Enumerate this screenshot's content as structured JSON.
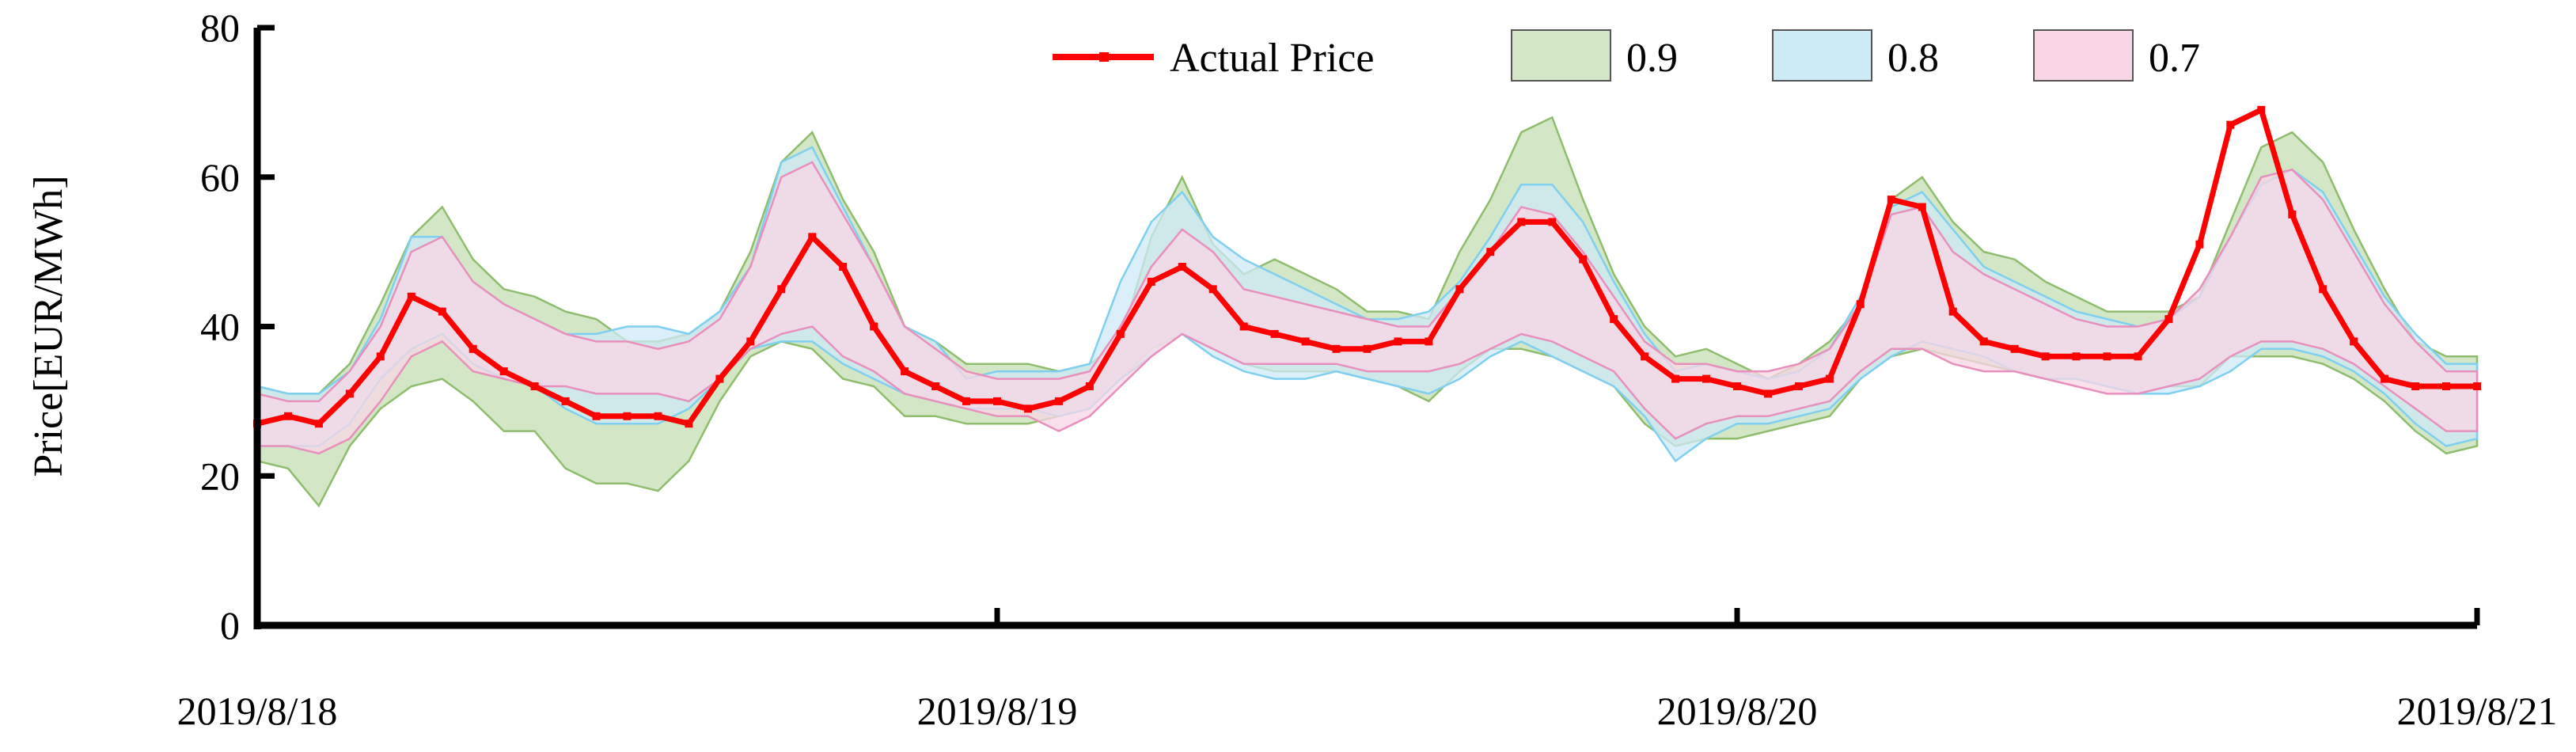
{
  "chart_data": {
    "type": "line",
    "title": "",
    "xlabel": "",
    "ylabel": "Price[EUR/MWh]",
    "ylim": [
      0,
      80
    ],
    "yticks": [
      "0",
      "20",
      "40",
      "60",
      "80"
    ],
    "xlim": [
      0,
      72
    ],
    "xticks": [
      {
        "x": 0,
        "label": "2019/8/18"
      },
      {
        "x": 24,
        "label": "2019/8/19"
      },
      {
        "x": 48,
        "label": "2019/8/20"
      },
      {
        "x": 72,
        "label": "2019/8/21"
      }
    ],
    "x": [
      0,
      1,
      2,
      3,
      4,
      5,
      6,
      7,
      8,
      9,
      10,
      11,
      12,
      13,
      14,
      15,
      16,
      17,
      18,
      19,
      20,
      21,
      22,
      23,
      24,
      25,
      26,
      27,
      28,
      29,
      30,
      31,
      32,
      33,
      34,
      35,
      36,
      37,
      38,
      39,
      40,
      41,
      42,
      43,
      44,
      45,
      46,
      47,
      48,
      49,
      50,
      51,
      52,
      53,
      54,
      55,
      56,
      57,
      58,
      59,
      60,
      61,
      62,
      63,
      64,
      65,
      66,
      67,
      68,
      69,
      70,
      71,
      72
    ],
    "legend_position": "top",
    "legend": [
      "Actual Price",
      "0.9",
      "0.8",
      "0.7"
    ],
    "series": [
      {
        "name": "Actual Price",
        "color": "#ff0000",
        "values": [
          27,
          28,
          27,
          31,
          36,
          44,
          42,
          37,
          34,
          32,
          30,
          28,
          28,
          28,
          27,
          33,
          38,
          45,
          52,
          48,
          40,
          34,
          32,
          30,
          30,
          29,
          30,
          32,
          39,
          46,
          48,
          45,
          40,
          39,
          38,
          37,
          37,
          38,
          38,
          45,
          50,
          54,
          54,
          49,
          41,
          36,
          33,
          33,
          32,
          31,
          32,
          33,
          43,
          57,
          56,
          42,
          38,
          37,
          36,
          36,
          36,
          36,
          41,
          51,
          67,
          69,
          55,
          45,
          38,
          33,
          32,
          32,
          32
        ]
      }
    ],
    "bands": [
      {
        "name": "0.9",
        "color": "#d3e6c5",
        "edge_color": "#8fbd6e",
        "lower": [
          22,
          21,
          16,
          24,
          29,
          32,
          33,
          30,
          26,
          26,
          21,
          19,
          19,
          18,
          22,
          30,
          36,
          38,
          37,
          33,
          32,
          28,
          28,
          27,
          27,
          27,
          28,
          29,
          33,
          37,
          39,
          37,
          35,
          34,
          34,
          34,
          33,
          32,
          30,
          34,
          37,
          37,
          36,
          34,
          32,
          27,
          24,
          25,
          25,
          26,
          27,
          28,
          33,
          36,
          37,
          36,
          35,
          34,
          33,
          33,
          32,
          31,
          32,
          32,
          36,
          36,
          36,
          35,
          33,
          30,
          26,
          23,
          24
        ],
        "upper": [
          32,
          31,
          31,
          35,
          43,
          52,
          56,
          49,
          45,
          44,
          42,
          41,
          38,
          38,
          39,
          42,
          50,
          62,
          66,
          57,
          50,
          40,
          38,
          35,
          35,
          35,
          34,
          35,
          38,
          52,
          60,
          51,
          47,
          49,
          47,
          45,
          42,
          42,
          41,
          50,
          57,
          66,
          68,
          57,
          47,
          40,
          36,
          37,
          35,
          33,
          35,
          38,
          43,
          57,
          60,
          54,
          50,
          49,
          46,
          44,
          42,
          42,
          42,
          44,
          54,
          64,
          66,
          62,
          53,
          45,
          38,
          36,
          36
        ]
      },
      {
        "name": "0.8",
        "color": "#cdeaf7",
        "edge_color": "#7fcff0",
        "lower": [
          24,
          24,
          24,
          27,
          33,
          37,
          39,
          35,
          33,
          32,
          29,
          27,
          27,
          27,
          29,
          33,
          37,
          38,
          38,
          35,
          33,
          31,
          30,
          29,
          29,
          29,
          28,
          29,
          33,
          36,
          39,
          36,
          34,
          33,
          33,
          34,
          33,
          32,
          31,
          33,
          36,
          38,
          36,
          34,
          32,
          28,
          22,
          25,
          27,
          27,
          28,
          29,
          33,
          36,
          38,
          37,
          36,
          34,
          33,
          33,
          32,
          31,
          31,
          32,
          34,
          37,
          37,
          36,
          34,
          31,
          27,
          24,
          25
        ],
        "upper": [
          32,
          31,
          31,
          34,
          41,
          52,
          52,
          46,
          43,
          41,
          39,
          39,
          40,
          40,
          39,
          42,
          48,
          62,
          64,
          56,
          48,
          40,
          38,
          33,
          34,
          34,
          34,
          35,
          46,
          54,
          58,
          52,
          49,
          47,
          45,
          43,
          41,
          41,
          42,
          46,
          52,
          59,
          59,
          54,
          46,
          39,
          34,
          35,
          34,
          33,
          34,
          37,
          44,
          56,
          58,
          53,
          48,
          46,
          44,
          42,
          41,
          40,
          41,
          44,
          52,
          59,
          61,
          58,
          51,
          44,
          39,
          35,
          35
        ]
      },
      {
        "name": "0.7",
        "color": "#f8d6e6",
        "edge_color": "#e98fbd",
        "lower": [
          24,
          24,
          23,
          25,
          30,
          36,
          38,
          34,
          33,
          32,
          32,
          31,
          31,
          31,
          30,
          33,
          37,
          39,
          40,
          36,
          34,
          31,
          30,
          29,
          28,
          28,
          26,
          28,
          32,
          36,
          39,
          37,
          35,
          35,
          35,
          35,
          34,
          34,
          34,
          35,
          37,
          39,
          38,
          36,
          34,
          29,
          25,
          27,
          28,
          28,
          29,
          30,
          34,
          37,
          37,
          35,
          34,
          34,
          33,
          32,
          31,
          31,
          32,
          33,
          36,
          38,
          38,
          37,
          35,
          32,
          29,
          26,
          26
        ],
        "upper": [
          31,
          30,
          30,
          34,
          40,
          50,
          52,
          46,
          43,
          41,
          39,
          38,
          38,
          37,
          38,
          41,
          48,
          60,
          62,
          55,
          48,
          40,
          37,
          34,
          33,
          33,
          33,
          34,
          40,
          48,
          53,
          50,
          45,
          44,
          43,
          42,
          41,
          40,
          40,
          45,
          50,
          56,
          55,
          50,
          44,
          38,
          35,
          35,
          34,
          34,
          35,
          37,
          43,
          55,
          56,
          50,
          47,
          45,
          43,
          41,
          40,
          40,
          41,
          45,
          52,
          60,
          61,
          57,
          50,
          43,
          38,
          34,
          34
        ]
      }
    ],
    "font_family": "serif"
  }
}
